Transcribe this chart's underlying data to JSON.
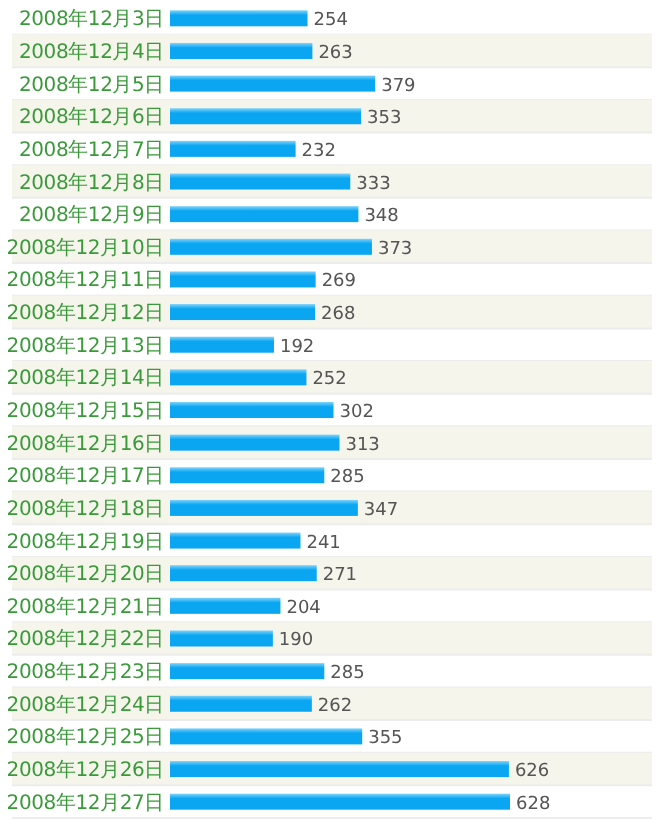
{
  "chart_data": {
    "type": "bar",
    "orientation": "horizontal",
    "data_labels": true,
    "color": "#0aa6f2",
    "categories": [
      "2008年12月3日",
      "2008年12月4日",
      "2008年12月5日",
      "2008年12月6日",
      "2008年12月7日",
      "2008年12月8日",
      "2008年12月9日",
      "2008年12月10日",
      "2008年12月11日",
      "2008年12月12日",
      "2008年12月13日",
      "2008年12月14日",
      "2008年12月15日",
      "2008年12月16日",
      "2008年12月17日",
      "2008年12月18日",
      "2008年12月19日",
      "2008年12月20日",
      "2008年12月21日",
      "2008年12月22日",
      "2008年12月23日",
      "2008年12月24日",
      "2008年12月25日",
      "2008年12月26日",
      "2008年12月27日"
    ],
    "values": [
      254,
      263,
      379,
      353,
      232,
      333,
      348,
      373,
      269,
      268,
      192,
      252,
      302,
      313,
      285,
      347,
      241,
      271,
      204,
      190,
      285,
      262,
      355,
      626,
      628
    ]
  }
}
